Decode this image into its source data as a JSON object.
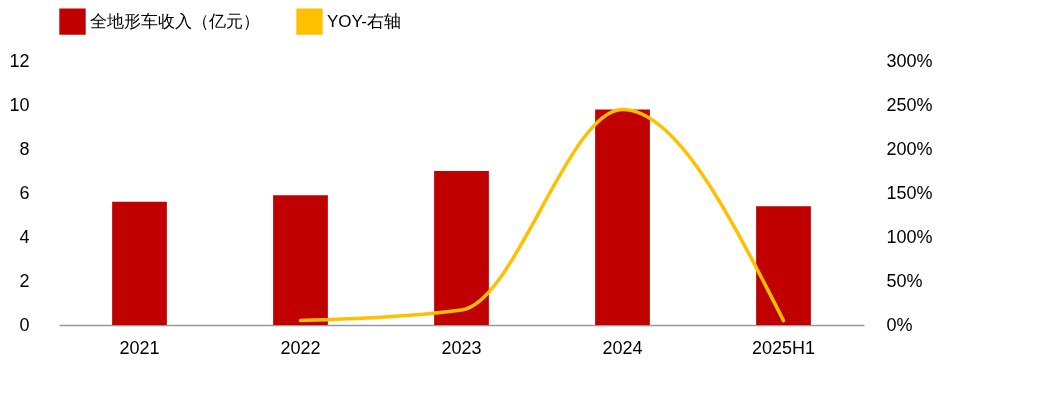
{
  "chart_data": {
    "type": "bar",
    "categories": [
      "2021",
      "2022",
      "2023",
      "2024",
      "2025H1"
    ],
    "series": [
      {
        "name": "全地形车收入（亿元）",
        "color": "#c00000",
        "values": [
          5.6,
          5.9,
          7.0,
          9.8,
          5.4
        ]
      },
      {
        "name": "YOY-右轴",
        "color": "#ffc000",
        "type": "line",
        "axis": "y2",
        "values": [
          null,
          5,
          17,
          245,
          5
        ]
      }
    ],
    "ylim": [
      0,
      12
    ],
    "yticks": [
      0,
      2,
      4,
      6,
      8,
      10,
      12
    ],
    "y2lim": [
      0,
      300
    ],
    "y2ticks": [
      {
        "value": 0,
        "label": "0%"
      },
      {
        "value": 50,
        "label": "50%"
      },
      {
        "value": 100,
        "label": "100%"
      },
      {
        "value": 150,
        "label": "150%"
      },
      {
        "value": 200,
        "label": "200%"
      },
      {
        "value": 250,
        "label": "250%"
      },
      {
        "value": 300,
        "label": "300%"
      }
    ],
    "grid": false,
    "legend": "top"
  }
}
